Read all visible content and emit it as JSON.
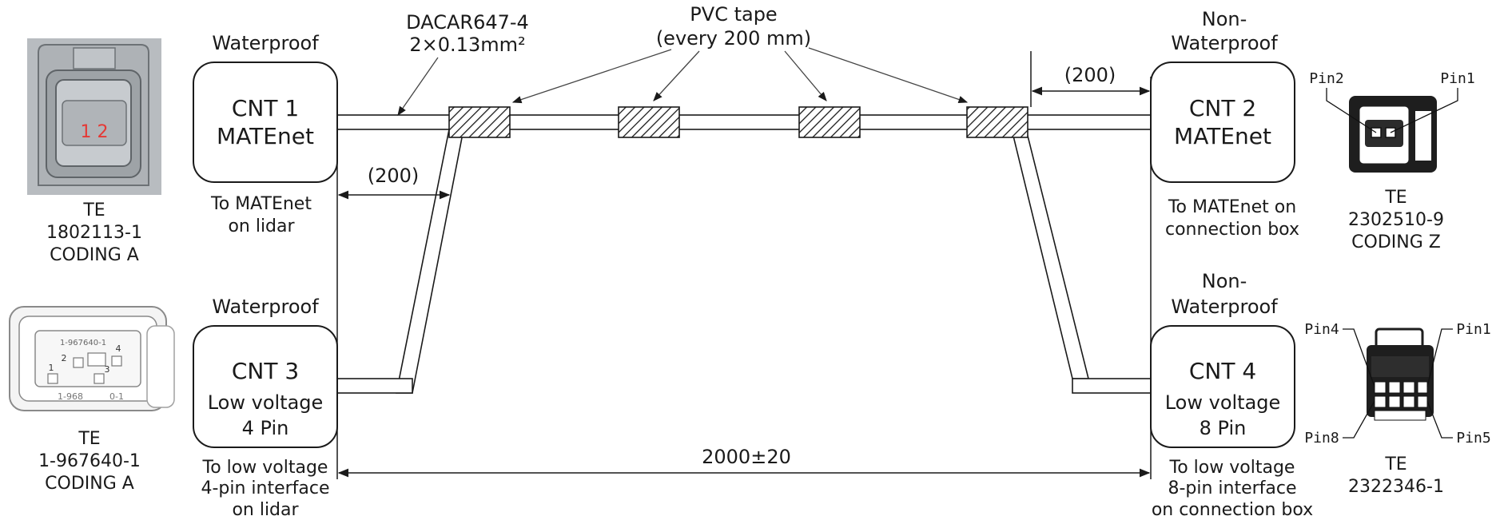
{
  "cable": {
    "part": "DACAR647-4",
    "spec": "2×0.13mm²",
    "tape_line1": "PVC tape",
    "tape_line2": "(every 200 mm)",
    "dim_left": "(200)",
    "dim_right": "(200)",
    "dim_total": "2000±20"
  },
  "connectors": {
    "cnt1": {
      "env": "Waterproof",
      "name": "CNT 1",
      "type": "MATEnet",
      "dest_line1": "To MATEnet",
      "dest_line2": "on lidar"
    },
    "cnt2": {
      "env_line1": "Non-",
      "env_line2": "Waterproof",
      "name": "CNT 2",
      "type": "MATEnet",
      "dest_line1": "To MATEnet on",
      "dest_line2": "connection box"
    },
    "cnt3": {
      "env": "Waterproof",
      "name": "CNT 3",
      "type_line1": "Low voltage",
      "type_line2": "4 Pin",
      "dest_line1": "To low voltage",
      "dest_line2": "4-pin interface",
      "dest_line3": "on lidar"
    },
    "cnt4": {
      "env_line1": "Non-",
      "env_line2": "Waterproof",
      "name": "CNT 4",
      "type_line1": "Low voltage",
      "type_line2": "8 Pin",
      "dest_line1": "To low voltage",
      "dest_line2": "8-pin interface",
      "dest_line3": "on connection box"
    }
  },
  "parts": {
    "p1": {
      "maker": "TE",
      "number": "1802113-1",
      "coding": "CODING A",
      "marks": "1 2"
    },
    "p2": {
      "maker": "TE",
      "number": "2302510-9",
      "coding": "CODING Z",
      "pin_a": "Pin2",
      "pin_b": "Pin1"
    },
    "p3": {
      "maker": "TE",
      "number": "1-967640-1",
      "coding": "CODING A",
      "housing_mark": "1-967640-1",
      "pin1": "1",
      "pin2": "2",
      "pin3": "3",
      "pin4": "4",
      "bottom_mark_a": "1-968",
      "bottom_mark_b": "0-1"
    },
    "p4": {
      "maker": "TE",
      "number": "2322346-1",
      "pin_tl": "Pin4",
      "pin_tr": "Pin1",
      "pin_bl": "Pin8",
      "pin_br": "Pin5"
    }
  },
  "colors": {
    "line": "#1a1a1a",
    "photo_bg": "#b8bcc0",
    "pin_mark": "#e53935"
  }
}
